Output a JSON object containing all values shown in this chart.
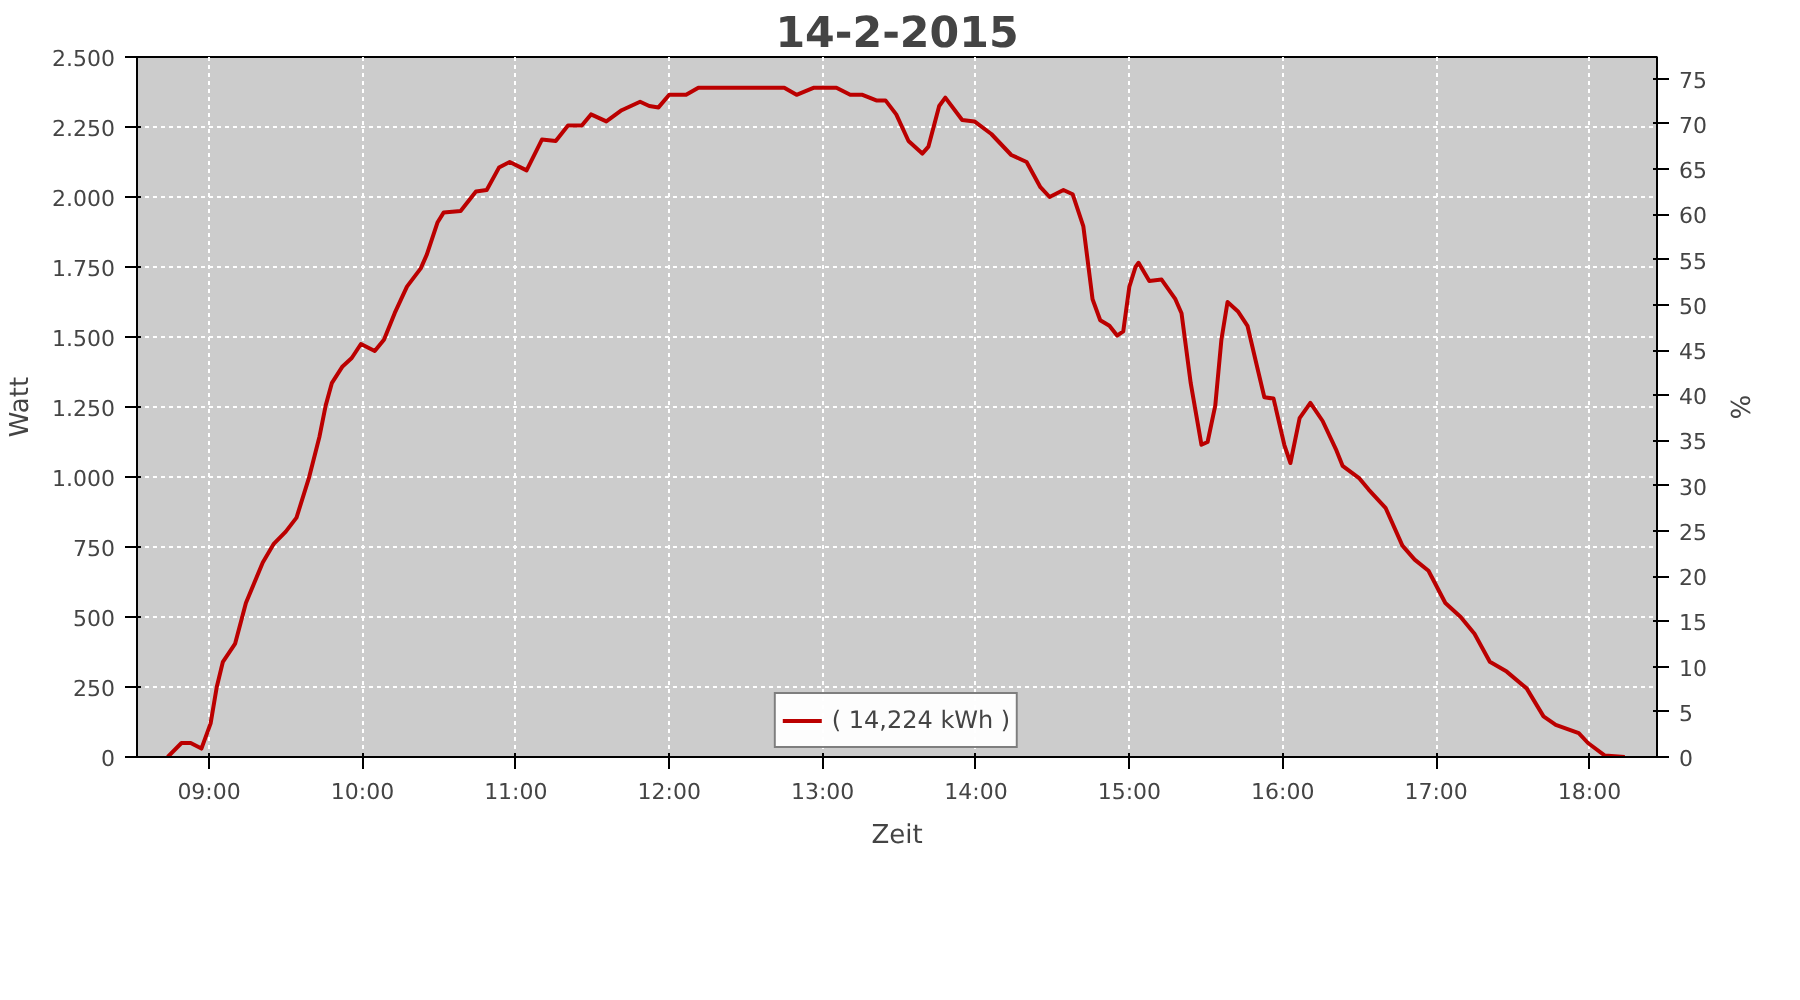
{
  "chart_data": {
    "type": "line",
    "title": "14-2-2015",
    "xlabel": "Zeit",
    "ylabel": "Watt",
    "y2label": "%",
    "xlim": [
      8.53,
      18.44
    ],
    "xticks": [
      {
        "value": 9,
        "label": "09:00"
      },
      {
        "value": 10,
        "label": "10:00"
      },
      {
        "value": 11,
        "label": "11:00"
      },
      {
        "value": 12,
        "label": "12:00"
      },
      {
        "value": 13,
        "label": "13:00"
      },
      {
        "value": 14,
        "label": "14:00"
      },
      {
        "value": 15,
        "label": "15:00"
      },
      {
        "value": 16,
        "label": "16:00"
      },
      {
        "value": 17,
        "label": "17:00"
      },
      {
        "value": 18,
        "label": "18:00"
      }
    ],
    "ylim": [
      0,
      2500
    ],
    "yticks": [
      0,
      250,
      500,
      750,
      {
        "value": 1000,
        "label": "1.000"
      },
      {
        "value": 1250,
        "label": "1.250"
      },
      {
        "value": 1500,
        "label": "1.500"
      },
      {
        "value": 1750,
        "label": "1.750"
      },
      {
        "value": 2000,
        "label": "2.000"
      },
      {
        "value": 2250,
        "label": "2.250"
      },
      {
        "value": 2500,
        "label": "2.500"
      }
    ],
    "y2lim": [
      0,
      77.4
    ],
    "y2ticks": [
      0,
      5,
      10,
      15,
      20,
      25,
      30,
      35,
      40,
      45,
      50,
      55,
      60,
      65,
      70,
      75
    ],
    "grid": true,
    "legend": "bottom",
    "line_style": "solid",
    "x": [
      8.73,
      8.82,
      8.88,
      8.95,
      9.01,
      9.05,
      9.09,
      9.17,
      9.24,
      9.35,
      9.42,
      9.5,
      9.57,
      9.65,
      9.72,
      9.76,
      9.8,
      9.87,
      9.93,
      9.99,
      10.08,
      10.14,
      10.21,
      10.29,
      10.38,
      10.42,
      10.49,
      10.53,
      10.64,
      10.74,
      10.81,
      10.89,
      10.96,
      11.07,
      11.17,
      11.26,
      11.34,
      11.43,
      11.49,
      11.59,
      11.69,
      11.81,
      11.87,
      11.93,
      12.0,
      12.11,
      12.19,
      12.62,
      12.75,
      12.83,
      12.94,
      13.09,
      13.18,
      13.26,
      13.35,
      13.41,
      13.48,
      13.56,
      13.65,
      13.69,
      13.76,
      13.8,
      13.91,
      13.99,
      14.1,
      14.23,
      14.33,
      14.42,
      14.48,
      14.57,
      14.63,
      14.7,
      14.76,
      14.81,
      14.87,
      14.92,
      14.96,
      15.0,
      15.04,
      15.06,
      15.13,
      15.21,
      15.3,
      15.34,
      15.4,
      15.47,
      15.51,
      15.56,
      15.6,
      15.64,
      15.71,
      15.77,
      15.83,
      15.88,
      15.94,
      16.01,
      16.05,
      16.11,
      16.18,
      16.26,
      16.35,
      16.39,
      16.5,
      16.56,
      16.67,
      16.78,
      16.86,
      16.95,
      17.06,
      17.16,
      17.25,
      17.35,
      17.46,
      17.59,
      17.7,
      17.78,
      17.93,
      17.99,
      18.1,
      18.23
    ],
    "series": [
      {
        "name": "( 14,224 kWh )",
        "color": "#bb0000",
        "values": [
          0,
          50,
          50,
          30,
          120,
          250,
          340,
          405,
          550,
          695,
          760,
          805,
          855,
          995,
          1145,
          1255,
          1335,
          1395,
          1425,
          1475,
          1450,
          1490,
          1585,
          1680,
          1745,
          1795,
          1910,
          1945,
          1950,
          2020,
          2025,
          2105,
          2125,
          2095,
          2205,
          2200,
          2255,
          2255,
          2295,
          2270,
          2310,
          2340,
          2325,
          2320,
          2365,
          2365,
          2390,
          2390,
          2390,
          2365,
          2390,
          2390,
          2365,
          2365,
          2345,
          2345,
          2295,
          2200,
          2155,
          2180,
          2325,
          2355,
          2275,
          2270,
          2225,
          2150,
          2125,
          2035,
          2000,
          2025,
          2010,
          1895,
          1635,
          1560,
          1540,
          1505,
          1520,
          1680,
          1750,
          1765,
          1700,
          1705,
          1635,
          1585,
          1335,
          1115,
          1125,
          1255,
          1490,
          1625,
          1590,
          1540,
          1400,
          1285,
          1280,
          1115,
          1050,
          1210,
          1265,
          1200,
          1095,
          1040,
          995,
          955,
          890,
          755,
          705,
          665,
          550,
          500,
          440,
          340,
          305,
          245,
          145,
          115,
          85,
          50,
          5,
          0
        ]
      }
    ]
  }
}
